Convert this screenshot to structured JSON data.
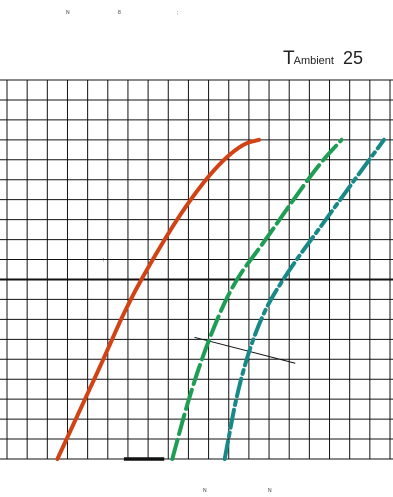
{
  "chart_data": {
    "type": "line",
    "annotation": {
      "prefix": "T",
      "subscript": "Ambient",
      "value": "25"
    },
    "top_marks": [
      "N",
      "8",
      ";"
    ],
    "bottom_marks": [
      "N",
      "N"
    ],
    "inner_mark": "!",
    "grid": true,
    "xlim": [
      0,
      19
    ],
    "ylim": [
      0,
      19
    ],
    "series": [
      {
        "color": "#d14314",
        "dash": "solid",
        "points": [
          [
            2.5,
            0
          ],
          [
            3.5,
            2.2
          ],
          [
            4.7,
            4.8
          ],
          [
            6.0,
            7.8
          ],
          [
            7.5,
            10.5
          ],
          [
            9.0,
            12.9
          ],
          [
            10.5,
            14.8
          ],
          [
            11.7,
            15.8
          ],
          [
            12.5,
            16
          ]
        ]
      },
      {
        "color": "#1e9e54",
        "dash": "long-dash",
        "points": [
          [
            8.2,
            0
          ],
          [
            9.0,
            3.0
          ],
          [
            10.0,
            6.0
          ],
          [
            11.2,
            8.8
          ],
          [
            12.7,
            10.8
          ],
          [
            14.0,
            12.7
          ],
          [
            15.5,
            14.8
          ],
          [
            16.6,
            16.0
          ]
        ]
      },
      {
        "color": "#178a87",
        "dash": "dash-dot",
        "points": [
          [
            10.8,
            0
          ],
          [
            11.5,
            3.8
          ],
          [
            12.6,
            7.2
          ],
          [
            14.0,
            9.5
          ],
          [
            15.6,
            11.7
          ],
          [
            17.1,
            13.8
          ],
          [
            18.7,
            16.0
          ]
        ]
      }
    ],
    "lines": [
      {
        "points": [
          [
            9.3,
            6.1
          ],
          [
            14.3,
            4.8
          ]
        ]
      },
      {
        "points": [
          [
            5.8,
            0
          ],
          [
            7.8,
            0
          ]
        ],
        "bold": true
      }
    ]
  }
}
